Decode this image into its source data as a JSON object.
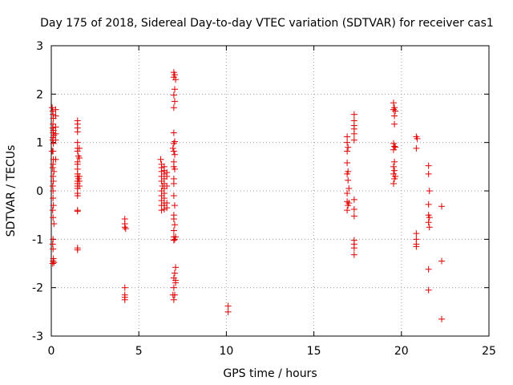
{
  "chart_data": {
    "type": "scatter",
    "title": "Day 175 of 2018, Sidereal Day-to-day VTEC variation (SDTVAR) for receiver cas1",
    "xlabel": "GPS time / hours",
    "ylabel": "SDTVAR / TECUs",
    "xlim": [
      0,
      25
    ],
    "ylim": [
      -3,
      3
    ],
    "xticks": [
      0,
      5,
      10,
      15,
      20,
      25
    ],
    "yticks": [
      -3,
      -2,
      -1,
      0,
      1,
      2,
      3
    ],
    "xtick_labels": [
      "0",
      "5",
      "10",
      "15",
      "20",
      "25"
    ],
    "ytick_labels": [
      "-3",
      "-2",
      "-1",
      "0",
      "1",
      "2",
      "3"
    ],
    "grid": true,
    "marker": "plus",
    "color": "#e00000",
    "series": [
      {
        "name": "SDTVAR",
        "points": [
          [
            0.05,
            1.72
          ],
          [
            0.08,
            1.65
          ],
          [
            0.1,
            1.58
          ],
          [
            0.12,
            1.5
          ],
          [
            0.1,
            1.38
          ],
          [
            0.08,
            1.3
          ],
          [
            0.12,
            1.25
          ],
          [
            0.1,
            1.2
          ],
          [
            0.15,
            1.15
          ],
          [
            0.1,
            1.1
          ],
          [
            0.08,
            1.05
          ],
          [
            0.12,
            0.98
          ],
          [
            0.1,
            0.82
          ],
          [
            0.05,
            0.82
          ],
          [
            0.12,
            0.65
          ],
          [
            0.1,
            0.55
          ],
          [
            0.08,
            0.48
          ],
          [
            0.15,
            0.4
          ],
          [
            0.1,
            0.3
          ],
          [
            0.12,
            0.2
          ],
          [
            0.08,
            0.1
          ],
          [
            0.1,
            0.0
          ],
          [
            0.1,
            -0.15
          ],
          [
            0.12,
            -0.3
          ],
          [
            0.08,
            -0.4
          ],
          [
            0.1,
            -0.55
          ],
          [
            0.15,
            -0.68
          ],
          [
            0.1,
            -1.0
          ],
          [
            0.08,
            -1.1
          ],
          [
            0.1,
            -1.2
          ],
          [
            0.12,
            -1.4
          ],
          [
            0.08,
            -1.5
          ],
          [
            0.1,
            -1.45
          ],
          [
            0.15,
            -1.48
          ],
          [
            0.25,
            1.68
          ],
          [
            0.25,
            1.55
          ],
          [
            0.25,
            1.32
          ],
          [
            0.25,
            1.18
          ],
          [
            0.25,
            1.05
          ],
          [
            0.25,
            0.65
          ],
          [
            1.5,
            1.45
          ],
          [
            1.5,
            1.38
          ],
          [
            1.5,
            1.3
          ],
          [
            1.5,
            1.22
          ],
          [
            1.5,
            1.0
          ],
          [
            1.5,
            0.88
          ],
          [
            1.5,
            0.82
          ],
          [
            1.55,
            0.72
          ],
          [
            1.5,
            0.6
          ],
          [
            1.5,
            0.55
          ],
          [
            1.5,
            0.45
          ],
          [
            1.5,
            0.35
          ],
          [
            1.5,
            0.3
          ],
          [
            1.55,
            0.25
          ],
          [
            1.5,
            0.2
          ],
          [
            1.5,
            0.15
          ],
          [
            1.5,
            0.1
          ],
          [
            1.5,
            0.05
          ],
          [
            1.5,
            -0.05
          ],
          [
            1.5,
            -0.1
          ],
          [
            1.5,
            -0.4
          ],
          [
            1.5,
            -0.42
          ],
          [
            1.5,
            -1.18
          ],
          [
            1.5,
            -1.22
          ],
          [
            1.6,
            0.88
          ],
          [
            1.6,
            0.68
          ],
          [
            1.6,
            0.3
          ],
          [
            1.6,
            0.2
          ],
          [
            1.6,
            0.1
          ],
          [
            4.2,
            -0.58
          ],
          [
            4.2,
            -0.68
          ],
          [
            4.2,
            -0.75
          ],
          [
            4.25,
            -0.78
          ],
          [
            4.2,
            -2.0
          ],
          [
            4.2,
            -2.15
          ],
          [
            4.2,
            -2.2
          ],
          [
            4.2,
            -2.25
          ],
          [
            6.25,
            0.65
          ],
          [
            6.3,
            0.55
          ],
          [
            6.3,
            0.48
          ],
          [
            6.3,
            0.4
          ],
          [
            6.3,
            0.3
          ],
          [
            6.3,
            0.2
          ],
          [
            6.35,
            0.1
          ],
          [
            6.3,
            0.0
          ],
          [
            6.3,
            -0.1
          ],
          [
            6.3,
            -0.2
          ],
          [
            6.3,
            -0.3
          ],
          [
            6.3,
            -0.4
          ],
          [
            6.45,
            0.5
          ],
          [
            6.45,
            0.42
          ],
          [
            6.45,
            0.35
          ],
          [
            6.45,
            0.25
          ],
          [
            6.45,
            0.15
          ],
          [
            6.45,
            0.05
          ],
          [
            6.45,
            -0.05
          ],
          [
            6.45,
            -0.15
          ],
          [
            6.45,
            -0.25
          ],
          [
            6.45,
            -0.3
          ],
          [
            6.45,
            -0.38
          ],
          [
            6.6,
            0.38
          ],
          [
            6.6,
            0.3
          ],
          [
            6.6,
            0.1
          ],
          [
            6.6,
            -0.25
          ],
          [
            6.6,
            -0.35
          ],
          [
            7.0,
            2.45
          ],
          [
            7.05,
            2.4
          ],
          [
            7.0,
            2.35
          ],
          [
            7.1,
            2.3
          ],
          [
            7.05,
            2.1
          ],
          [
            7.0,
            1.98
          ],
          [
            7.05,
            1.85
          ],
          [
            7.0,
            1.72
          ],
          [
            7.0,
            1.2
          ],
          [
            7.05,
            1.02
          ],
          [
            7.0,
            0.98
          ],
          [
            6.95,
            0.88
          ],
          [
            7.0,
            0.82
          ],
          [
            7.05,
            0.75
          ],
          [
            7.0,
            0.6
          ],
          [
            7.0,
            0.5
          ],
          [
            7.05,
            0.45
          ],
          [
            7.0,
            0.25
          ],
          [
            7.0,
            0.15
          ],
          [
            7.0,
            -0.1
          ],
          [
            7.05,
            -0.3
          ],
          [
            7.0,
            -0.5
          ],
          [
            7.0,
            -0.58
          ],
          [
            7.05,
            -0.7
          ],
          [
            7.0,
            -0.82
          ],
          [
            7.0,
            -0.95
          ],
          [
            7.05,
            -1.0
          ],
          [
            7.0,
            -1.02
          ],
          [
            7.1,
            -1.58
          ],
          [
            7.05,
            -1.7
          ],
          [
            7.0,
            -1.8
          ],
          [
            7.1,
            -1.9
          ],
          [
            7.0,
            -2.0
          ],
          [
            7.05,
            -2.15
          ],
          [
            7.0,
            -2.25
          ],
          [
            6.95,
            -2.15
          ],
          [
            7.1,
            -1.85
          ],
          [
            7.1,
            -0.95
          ],
          [
            10.1,
            -2.38
          ],
          [
            10.1,
            -2.5
          ],
          [
            16.9,
            1.12
          ],
          [
            16.9,
            1.0
          ],
          [
            16.95,
            0.9
          ],
          [
            16.9,
            0.82
          ],
          [
            16.9,
            0.58
          ],
          [
            16.95,
            0.4
          ],
          [
            16.9,
            0.35
          ],
          [
            16.95,
            0.22
          ],
          [
            17.0,
            0.05
          ],
          [
            16.9,
            -0.05
          ],
          [
            16.9,
            -0.22
          ],
          [
            17.0,
            -0.25
          ],
          [
            16.95,
            -0.3
          ],
          [
            16.9,
            -0.4
          ],
          [
            17.3,
            1.58
          ],
          [
            17.3,
            1.45
          ],
          [
            17.3,
            1.35
          ],
          [
            17.3,
            1.28
          ],
          [
            17.3,
            1.18
          ],
          [
            17.3,
            1.05
          ],
          [
            17.3,
            -0.18
          ],
          [
            17.3,
            -0.38
          ],
          [
            17.3,
            -0.52
          ],
          [
            17.3,
            -1.02
          ],
          [
            17.3,
            -1.1
          ],
          [
            17.3,
            -1.18
          ],
          [
            17.3,
            -1.32
          ],
          [
            19.55,
            1.82
          ],
          [
            19.6,
            1.72
          ],
          [
            19.55,
            1.68
          ],
          [
            19.65,
            1.65
          ],
          [
            19.6,
            1.55
          ],
          [
            19.6,
            1.38
          ],
          [
            19.55,
            0.98
          ],
          [
            19.6,
            0.92
          ],
          [
            19.55,
            0.85
          ],
          [
            19.6,
            0.6
          ],
          [
            19.55,
            0.5
          ],
          [
            19.6,
            0.42
          ],
          [
            19.55,
            0.35
          ],
          [
            19.6,
            0.25
          ],
          [
            19.55,
            0.15
          ],
          [
            19.65,
            0.9
          ],
          [
            19.65,
            0.3
          ],
          [
            20.85,
            1.12
          ],
          [
            20.9,
            1.08
          ],
          [
            20.85,
            0.88
          ],
          [
            20.85,
            -0.88
          ],
          [
            20.85,
            -1.0
          ],
          [
            20.85,
            -1.1
          ],
          [
            20.85,
            -1.15
          ],
          [
            21.55,
            0.52
          ],
          [
            21.55,
            0.35
          ],
          [
            21.6,
            0.0
          ],
          [
            21.55,
            -0.28
          ],
          [
            21.55,
            -0.5
          ],
          [
            21.6,
            -0.55
          ],
          [
            21.55,
            -0.65
          ],
          [
            21.6,
            -0.75
          ],
          [
            21.55,
            -1.62
          ],
          [
            21.55,
            -2.05
          ],
          [
            22.3,
            -0.32
          ],
          [
            22.3,
            -1.45
          ],
          [
            22.3,
            -2.65
          ]
        ]
      }
    ]
  }
}
